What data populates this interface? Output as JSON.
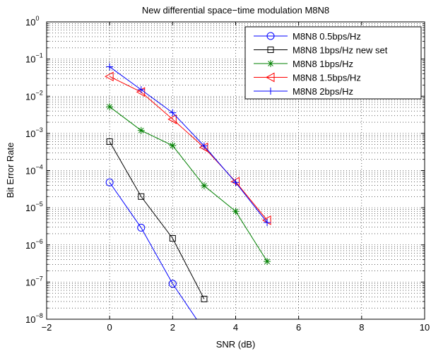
{
  "chart_data": {
    "type": "line",
    "title": "New differential space−time modulation M8N8",
    "xlabel": "SNR (dB)",
    "ylabel": "Bit Error Rate",
    "xlim": [
      -2,
      10
    ],
    "ylim": [
      1e-08,
      1
    ],
    "y_scale": "log",
    "grid": true,
    "legend_position": "top-right",
    "x_ticks": [
      "−2",
      "0",
      "2",
      "4",
      "6",
      "8",
      "10"
    ],
    "y_ticks": [
      {
        "base": "10",
        "exp": "0"
      },
      {
        "base": "10",
        "exp": "−1"
      },
      {
        "base": "10",
        "exp": "−2"
      },
      {
        "base": "10",
        "exp": "−3"
      },
      {
        "base": "10",
        "exp": "−4"
      },
      {
        "base": "10",
        "exp": "−5"
      },
      {
        "base": "10",
        "exp": "−6"
      },
      {
        "base": "10",
        "exp": "−7"
      },
      {
        "base": "10",
        "exp": "−8"
      }
    ],
    "series": [
      {
        "name": "M8N8 0.5bps/Hz",
        "color": "#0000ff",
        "marker": "circle",
        "x": [
          0,
          1,
          2,
          3
        ],
        "y": [
          4.8e-05,
          2.9e-06,
          9e-08,
          5e-09
        ]
      },
      {
        "name": "M8N8 1bps/Hz new set",
        "color": "#000000",
        "marker": "square",
        "x": [
          0,
          1,
          2,
          3
        ],
        "y": [
          0.0006,
          2e-05,
          1.5e-06,
          3.5e-08
        ]
      },
      {
        "name": "M8N8 1bps/Hz",
        "color": "#008000",
        "marker": "star",
        "x": [
          0,
          1,
          2,
          3,
          4,
          5
        ],
        "y": [
          0.0052,
          0.0012,
          0.00047,
          3.9e-05,
          8e-06,
          3.6e-07
        ]
      },
      {
        "name": "M8N8 1.5bps/Hz",
        "color": "#ff0000",
        "marker": "triangle-left",
        "x": [
          0,
          1,
          2,
          3,
          4,
          5
        ],
        "y": [
          0.034,
          0.013,
          0.0024,
          0.00042,
          5e-05,
          4.6e-06
        ]
      },
      {
        "name": "M8N8 2bps/Hz",
        "color": "#0000ff",
        "marker": "plus",
        "x": [
          0,
          1,
          2,
          3,
          4,
          5
        ],
        "y": [
          0.062,
          0.015,
          0.0036,
          0.00046,
          4.8e-05,
          4e-06
        ]
      }
    ]
  }
}
